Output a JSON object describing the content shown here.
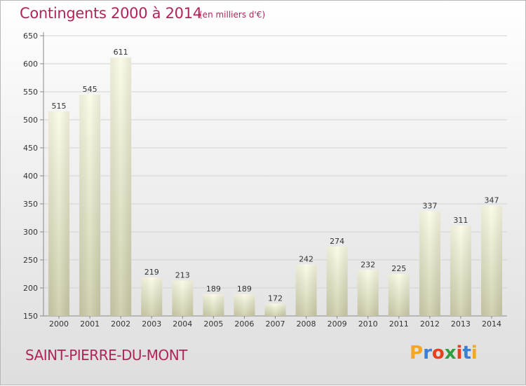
{
  "header": {
    "title": "Contingents 2000 à 2014",
    "subtitle": "(en milliers d'€)"
  },
  "footer": {
    "commune": "SAINT-PIERRE-DU-MONT",
    "logo_text": "Proxiti"
  },
  "colors": {
    "accent": "#b0245a",
    "bar_top": "#fbfbe6",
    "bar_bottom": "#cdcdaa"
  },
  "chart_data": {
    "type": "bar",
    "categories": [
      "2000",
      "2001",
      "2002",
      "2003",
      "2004",
      "2005",
      "2006",
      "2007",
      "2008",
      "2009",
      "2010",
      "2011",
      "2012",
      "2013",
      "2014"
    ],
    "values": [
      515,
      545,
      611,
      219,
      213,
      189,
      189,
      172,
      242,
      274,
      232,
      225,
      337,
      311,
      347
    ],
    "yticks": [
      150,
      200,
      250,
      300,
      350,
      400,
      450,
      500,
      550,
      600,
      650
    ],
    "ylim": [
      150,
      650
    ],
    "grid": true,
    "legend": "none"
  }
}
